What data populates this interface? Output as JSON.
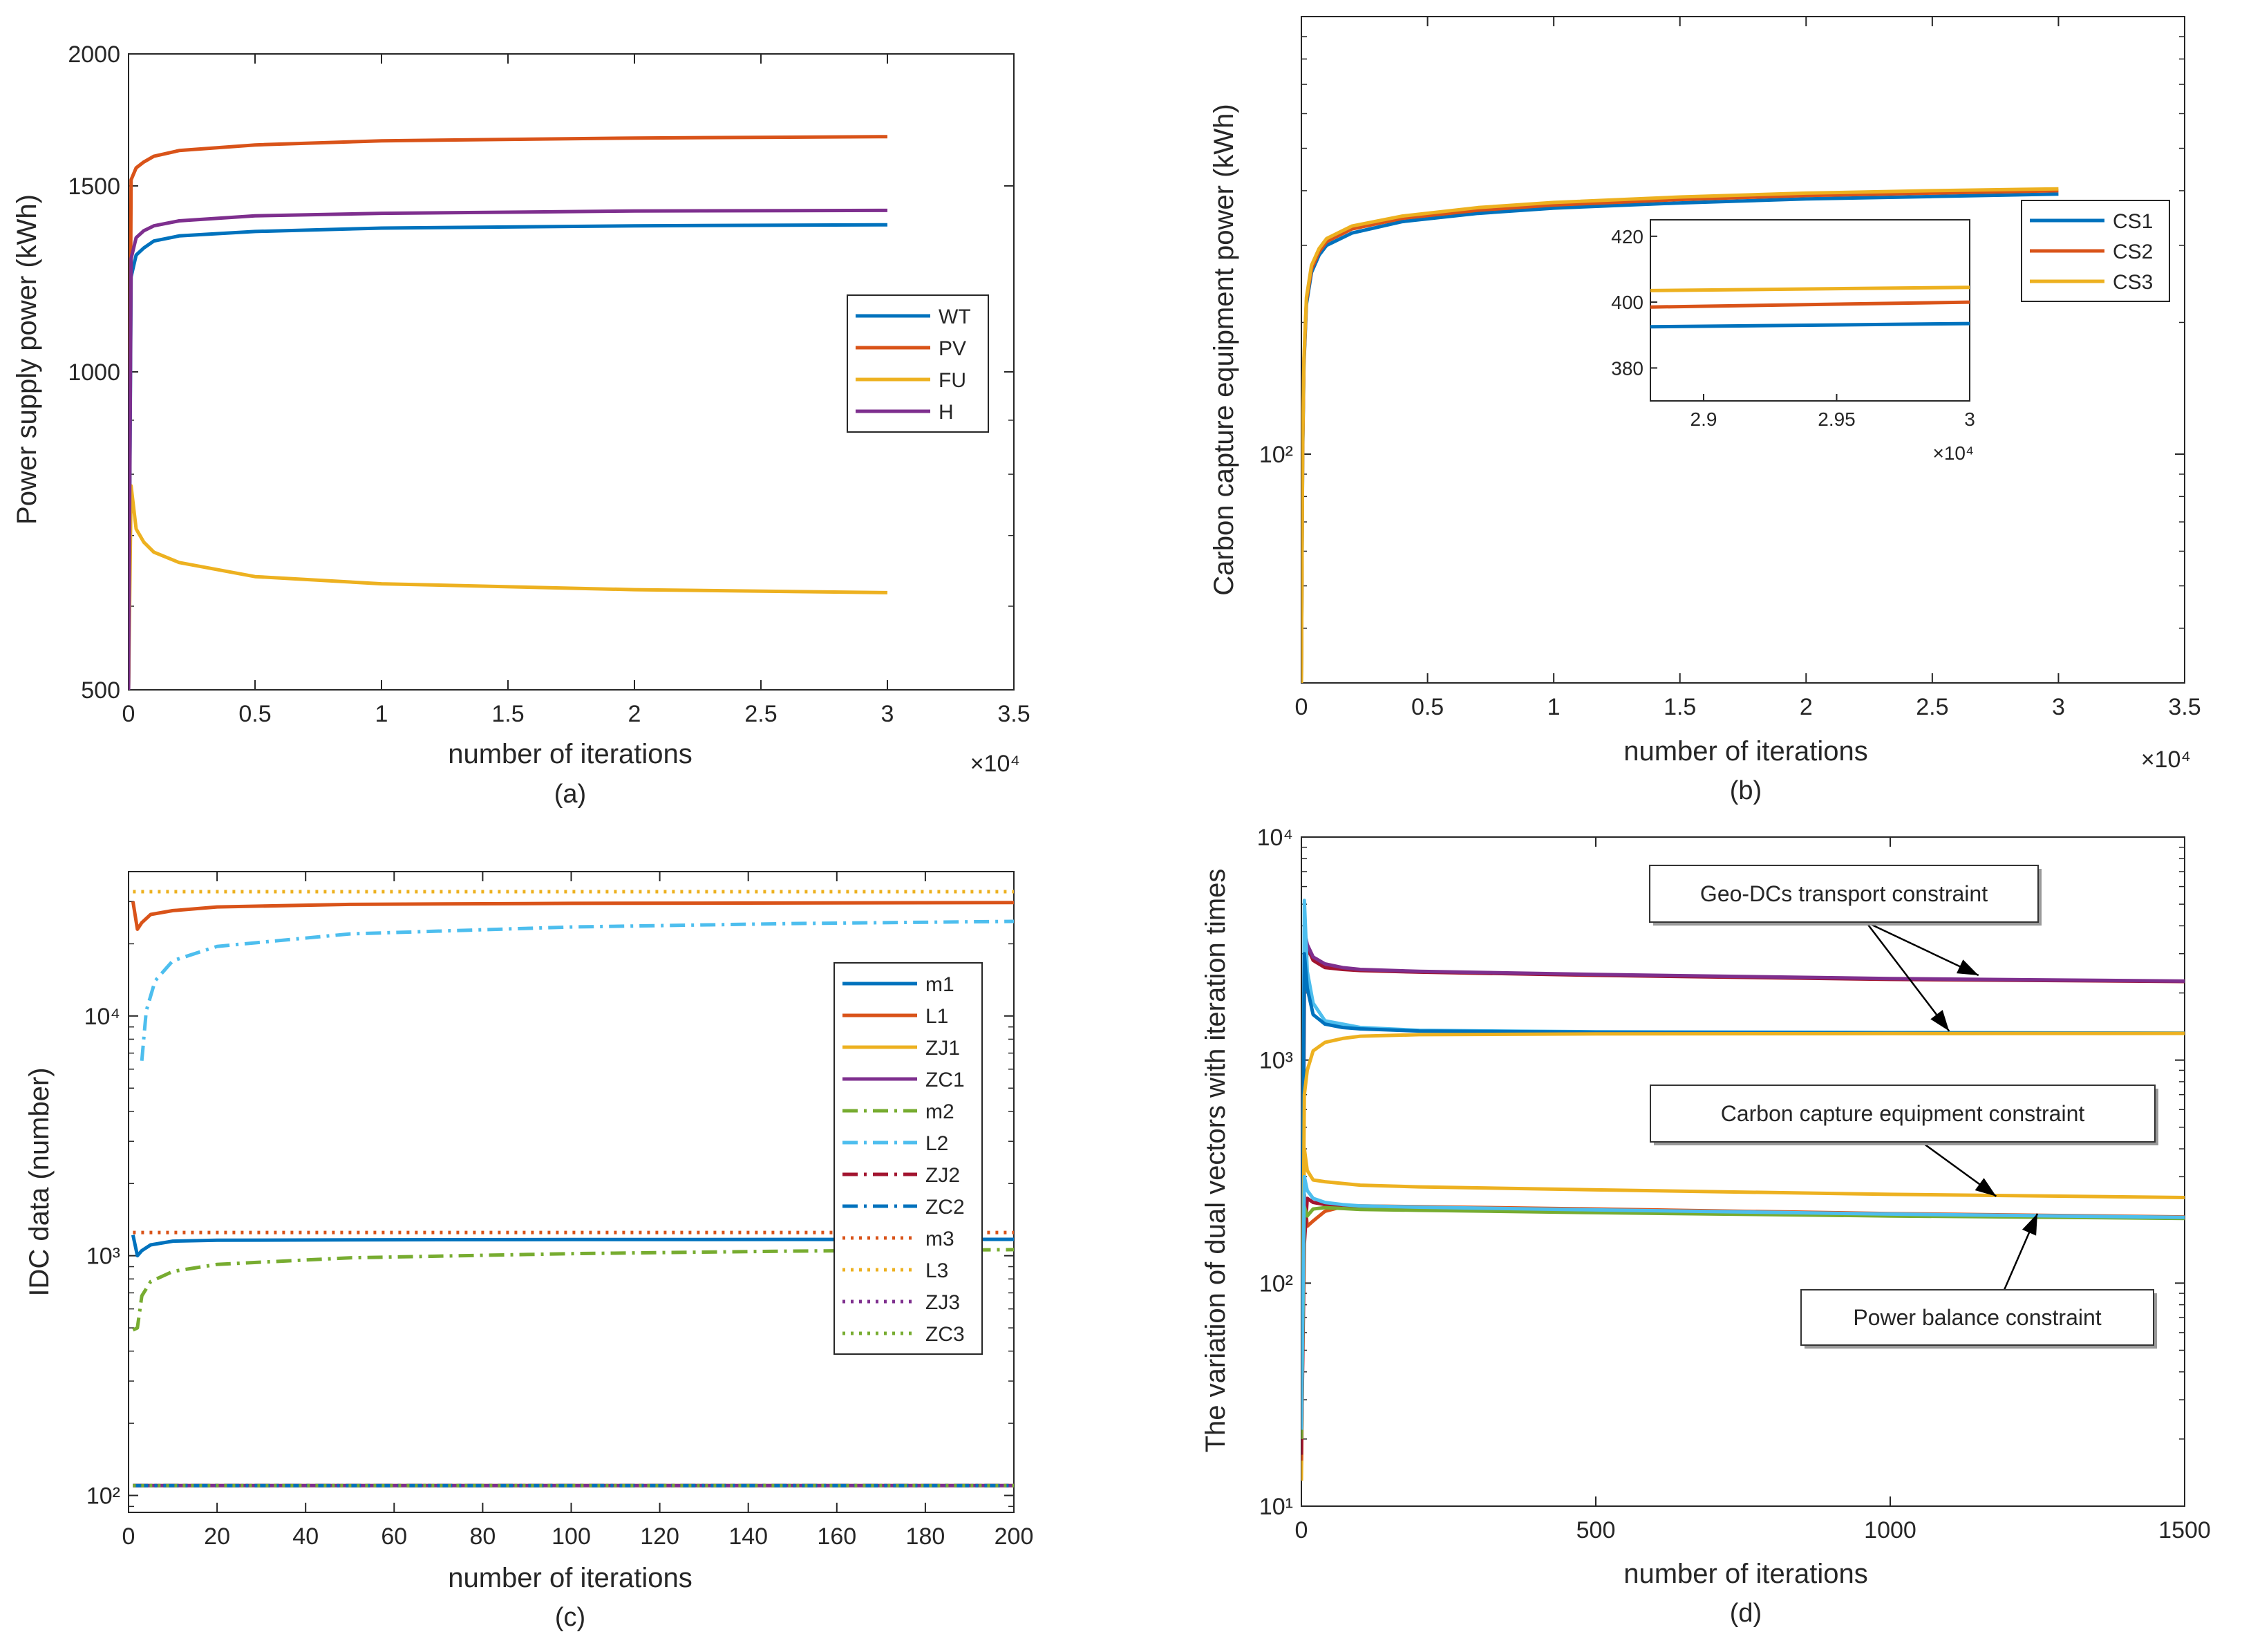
{
  "chart_data": [
    {
      "id": "a",
      "type": "line",
      "caption": "(a)",
      "xlabel": "number of iterations",
      "ylabel": "Power supply power (kWh)",
      "x_multiplier_label": "×10⁴",
      "xlim": [
        0,
        35000
      ],
      "ylim": [
        500,
        2000
      ],
      "yscale": "log",
      "xticks": [
        0,
        5000,
        10000,
        15000,
        20000,
        25000,
        30000,
        35000
      ],
      "xtick_labels": [
        "0",
        "0.5",
        "1",
        "1.5",
        "2",
        "2.5",
        "3",
        "3.5"
      ],
      "yticks": [
        500,
        1000,
        1500,
        2000
      ],
      "ytick_labels": [
        "500",
        "1000",
        "1500",
        "2000"
      ],
      "legend_position": "right-middle",
      "series": [
        {
          "name": "WT",
          "color": "#0072BD",
          "dash": "solid",
          "x": [
            0,
            100,
            300,
            600,
            1000,
            2000,
            5000,
            10000,
            20000,
            30000
          ],
          "y": [
            500,
            1230,
            1290,
            1310,
            1330,
            1345,
            1358,
            1368,
            1375,
            1378
          ]
        },
        {
          "name": "PV",
          "color": "#D95319",
          "dash": "solid",
          "x": [
            0,
            100,
            300,
            600,
            1000,
            2000,
            5000,
            10000,
            20000,
            30000
          ],
          "y": [
            500,
            1520,
            1560,
            1580,
            1600,
            1620,
            1640,
            1655,
            1665,
            1670
          ]
        },
        {
          "name": "FU",
          "color": "#EDB120",
          "dash": "solid",
          "x": [
            0,
            100,
            300,
            600,
            1000,
            2000,
            5000,
            10000,
            20000,
            30000
          ],
          "y": [
            500,
            780,
            710,
            690,
            675,
            660,
            640,
            630,
            622,
            618
          ]
        },
        {
          "name": "H",
          "color": "#7E2F8E",
          "dash": "solid",
          "x": [
            0,
            100,
            300,
            600,
            1000,
            2000,
            5000,
            10000,
            20000,
            30000
          ],
          "y": [
            500,
            1280,
            1340,
            1360,
            1375,
            1390,
            1405,
            1413,
            1420,
            1422
          ]
        }
      ]
    },
    {
      "id": "b",
      "type": "line",
      "caption": "(b)",
      "xlabel": "number of iterations",
      "ylabel": "Carbon capture equipment power (kWh)",
      "x_multiplier_label": "×10⁴",
      "xlim": [
        0,
        35000
      ],
      "ylim": [
        30,
        1000
      ],
      "yscale": "log",
      "xticks": [
        0,
        5000,
        10000,
        15000,
        20000,
        25000,
        30000,
        35000
      ],
      "xtick_labels": [
        "0",
        "0.5",
        "1",
        "1.5",
        "2",
        "2.5",
        "3",
        "3.5"
      ],
      "yticks": [
        100
      ],
      "ytick_labels": [
        "10²"
      ],
      "legend_position": "top-right",
      "series": [
        {
          "name": "CS1",
          "color": "#0072BD",
          "dash": "solid",
          "x": [
            0,
            50,
            100,
            200,
            400,
            700,
            1000,
            2000,
            4000,
            7000,
            10000,
            15000,
            20000,
            25000,
            30000
          ],
          "y": [
            30,
            100,
            160,
            220,
            260,
            285,
            300,
            320,
            340,
            355,
            365,
            375,
            383,
            388,
            393
          ]
        },
        {
          "name": "CS2",
          "color": "#D95319",
          "dash": "solid",
          "x": [
            0,
            50,
            100,
            200,
            400,
            700,
            1000,
            2000,
            4000,
            7000,
            10000,
            15000,
            20000,
            25000,
            30000
          ],
          "y": [
            30,
            102,
            163,
            224,
            265,
            290,
            306,
            327,
            346,
            361,
            371,
            382,
            390,
            395,
            400
          ]
        },
        {
          "name": "CS3",
          "color": "#EDB120",
          "dash": "solid",
          "x": [
            0,
            50,
            100,
            200,
            400,
            700,
            1000,
            2000,
            4000,
            7000,
            10000,
            15000,
            20000,
            25000,
            30000
          ],
          "y": [
            30,
            104,
            166,
            228,
            270,
            295,
            311,
            332,
            350,
            366,
            376,
            387,
            395,
            400,
            404
          ]
        }
      ],
      "inset": {
        "xlim": [
          28800,
          30000
        ],
        "ylim": [
          370,
          425
        ],
        "xticks": [
          29000,
          29500,
          30000
        ],
        "xtick_labels": [
          "2.9",
          "2.95",
          "3"
        ],
        "yticks": [
          380,
          400,
          420
        ],
        "ytick_labels": [
          "380",
          "400",
          "420"
        ],
        "x_multiplier_label": "×10⁴",
        "series": [
          {
            "name": "CS1",
            "color": "#0072BD",
            "x": [
              28800,
              30000
            ],
            "y": [
              392.5,
              393.5
            ]
          },
          {
            "name": "CS2",
            "color": "#D95319",
            "x": [
              28800,
              30000
            ],
            "y": [
              398.5,
              400
            ]
          },
          {
            "name": "CS3",
            "color": "#EDB120",
            "x": [
              28800,
              30000
            ],
            "y": [
              403.5,
              404.5
            ]
          }
        ]
      }
    },
    {
      "id": "c",
      "type": "line",
      "caption": "(c)",
      "xlabel": "number of iterations",
      "ylabel": "IDC data (number)",
      "xlim": [
        0,
        200
      ],
      "ylim": [
        85,
        40000
      ],
      "yscale": "log",
      "xticks": [
        0,
        20,
        40,
        60,
        80,
        100,
        120,
        140,
        160,
        180,
        200
      ],
      "xtick_labels": [
        "0",
        "20",
        "40",
        "60",
        "80",
        "100",
        "120",
        "140",
        "160",
        "180",
        "200"
      ],
      "yticks": [
        100,
        1000,
        10000
      ],
      "ytick_labels": [
        "10²",
        "10³",
        "10⁴"
      ],
      "legend_position": "right",
      "series": [
        {
          "name": "m1",
          "color": "#0072BD",
          "dash": "solid",
          "x": [
            1,
            2,
            3,
            5,
            10,
            20,
            50,
            100,
            200
          ],
          "y": [
            1220,
            1000,
            1050,
            1110,
            1150,
            1160,
            1165,
            1168,
            1170
          ]
        },
        {
          "name": "L1",
          "color": "#D95319",
          "dash": "solid",
          "x": [
            1,
            2,
            3,
            5,
            10,
            20,
            50,
            100,
            200
          ],
          "y": [
            30000,
            23000,
            24500,
            26500,
            27500,
            28500,
            29200,
            29500,
            29700
          ]
        },
        {
          "name": "ZJ1",
          "color": "#EDB120",
          "dash": "solid",
          "x": [
            1,
            200
          ],
          "y": [
            110,
            110
          ]
        },
        {
          "name": "ZC1",
          "color": "#7E2F8E",
          "dash": "solid",
          "x": [
            1,
            200
          ],
          "y": [
            110,
            110
          ]
        },
        {
          "name": "m2",
          "color": "#77AC30",
          "dash": "dashdot",
          "x": [
            1,
            2,
            3,
            5,
            10,
            20,
            50,
            100,
            150,
            200
          ],
          "y": [
            490,
            500,
            680,
            780,
            860,
            920,
            980,
            1020,
            1045,
            1060
          ]
        },
        {
          "name": "L2",
          "color": "#4DBEEE",
          "dash": "dashdot",
          "x": [
            3,
            4,
            6,
            10,
            20,
            50,
            100,
            150,
            200
          ],
          "y": [
            6500,
            10500,
            14000,
            17000,
            19500,
            22000,
            23500,
            24300,
            24800
          ]
        },
        {
          "name": "ZJ2",
          "color": "#A2142F",
          "dash": "dashdot",
          "x": [
            1,
            200
          ],
          "y": [
            110,
            110
          ]
        },
        {
          "name": "ZC2",
          "color": "#0072BD",
          "dash": "dashdot",
          "x": [
            1,
            200
          ],
          "y": [
            110,
            110
          ]
        },
        {
          "name": "m3",
          "color": "#D95319",
          "dash": "dotted",
          "x": [
            1,
            200
          ],
          "y": [
            1250,
            1250
          ]
        },
        {
          "name": "L3",
          "color": "#EDB120",
          "dash": "dotted",
          "x": [
            1,
            200
          ],
          "y": [
            33000,
            33000
          ]
        },
        {
          "name": "ZJ3",
          "color": "#7E2F8E",
          "dash": "dotted",
          "x": [
            1,
            200
          ],
          "y": [
            110,
            110
          ]
        },
        {
          "name": "ZC3",
          "color": "#77AC30",
          "dash": "dotted",
          "x": [
            1,
            200
          ],
          "y": [
            110,
            110
          ]
        }
      ]
    },
    {
      "id": "d",
      "type": "line",
      "caption": "(d)",
      "xlabel": "number of iterations",
      "ylabel": "The variation of dual vectors with iteration times",
      "xlim": [
        0,
        1500
      ],
      "ylim": [
        10,
        10000
      ],
      "yscale": "log",
      "xticks": [
        0,
        500,
        1000,
        1500
      ],
      "xtick_labels": [
        "0",
        "500",
        "1000",
        "1500"
      ],
      "yticks": [
        10,
        100,
        1000,
        10000
      ],
      "ytick_labels": [
        "10¹",
        "10²",
        "10³",
        "10⁴"
      ],
      "annotations": [
        {
          "text": "Geo-DCs transport constraint",
          "targets": [
            {
              "x": 1150,
              "y": 2400
            },
            {
              "x": 1100,
              "y": 1350
            }
          ]
        },
        {
          "text": "Carbon capture equipment constraint",
          "targets": [
            {
              "x": 1180,
              "y": 245
            }
          ]
        },
        {
          "text": "Power balance constraint",
          "targets": [
            {
              "x": 1250,
              "y": 205
            }
          ]
        }
      ],
      "series": [
        {
          "color": "#A2142F",
          "dash": "solid",
          "x": [
            0,
            5,
            10,
            20,
            40,
            70,
            100,
            200,
            500,
            1000,
            1500
          ],
          "y": [
            15,
            2000,
            3200,
            2800,
            2600,
            2550,
            2520,
            2480,
            2400,
            2300,
            2250
          ]
        },
        {
          "color": "#7E2F8E",
          "dash": "solid",
          "x": [
            0,
            5,
            10,
            20,
            40,
            70,
            100,
            200,
            500,
            1000,
            1500
          ],
          "y": [
            18,
            3800,
            3300,
            2900,
            2700,
            2600,
            2550,
            2500,
            2420,
            2320,
            2260
          ]
        },
        {
          "color": "#4DBEEE",
          "dash": "solid",
          "x": [
            0,
            5,
            10,
            20,
            40,
            70,
            100,
            200,
            500,
            1000,
            1500
          ],
          "y": [
            20,
            5200,
            2500,
            1800,
            1500,
            1450,
            1400,
            1360,
            1340,
            1330,
            1320
          ]
        },
        {
          "color": "#0072BD",
          "dash": "solid",
          "x": [
            0,
            5,
            10,
            20,
            40,
            70,
            100,
            200,
            500,
            1000,
            1500
          ],
          "y": [
            15,
            3000,
            2100,
            1600,
            1450,
            1400,
            1380,
            1350,
            1335,
            1325,
            1320
          ]
        },
        {
          "color": "#EDB120",
          "dash": "solid",
          "x": [
            0,
            5,
            10,
            20,
            40,
            70,
            100,
            200,
            500,
            1000,
            1500
          ],
          "y": [
            14,
            700,
            900,
            1100,
            1200,
            1250,
            1280,
            1300,
            1310,
            1315,
            1318
          ]
        },
        {
          "color": "#EDB120",
          "dash": "solid",
          "x": [
            0,
            5,
            10,
            20,
            40,
            70,
            100,
            200,
            500,
            1000,
            1500
          ],
          "y": [
            13,
            400,
            320,
            290,
            285,
            280,
            275,
            270,
            262,
            250,
            242
          ]
        },
        {
          "color": "#D95319",
          "dash": "solid",
          "x": [
            0,
            5,
            10,
            20,
            40,
            70,
            100,
            200,
            500,
            1000,
            1500
          ],
          "y": [
            16,
            250,
            180,
            190,
            210,
            220,
            222,
            220,
            215,
            205,
            198
          ]
        },
        {
          "color": "#A2142F",
          "dash": "solid",
          "x": [
            0,
            5,
            10,
            20,
            40,
            70,
            100,
            200,
            500,
            1000,
            1500
          ],
          "y": [
            17,
            150,
            240,
            230,
            225,
            222,
            220,
            218,
            212,
            203,
            196
          ]
        },
        {
          "color": "#77AC30",
          "dash": "solid",
          "x": [
            0,
            5,
            10,
            20,
            40,
            70,
            100,
            200,
            500,
            1000,
            1500
          ],
          "y": [
            20,
            220,
            200,
            215,
            218,
            216,
            214,
            212,
            207,
            200,
            195
          ]
        },
        {
          "color": "#4DBEEE",
          "dash": "solid",
          "x": [
            0,
            5,
            10,
            20,
            40,
            70,
            100,
            200,
            500,
            1000,
            1500
          ],
          "y": [
            22,
            300,
            260,
            240,
            230,
            225,
            222,
            219,
            213,
            204,
            197
          ]
        }
      ]
    }
  ]
}
